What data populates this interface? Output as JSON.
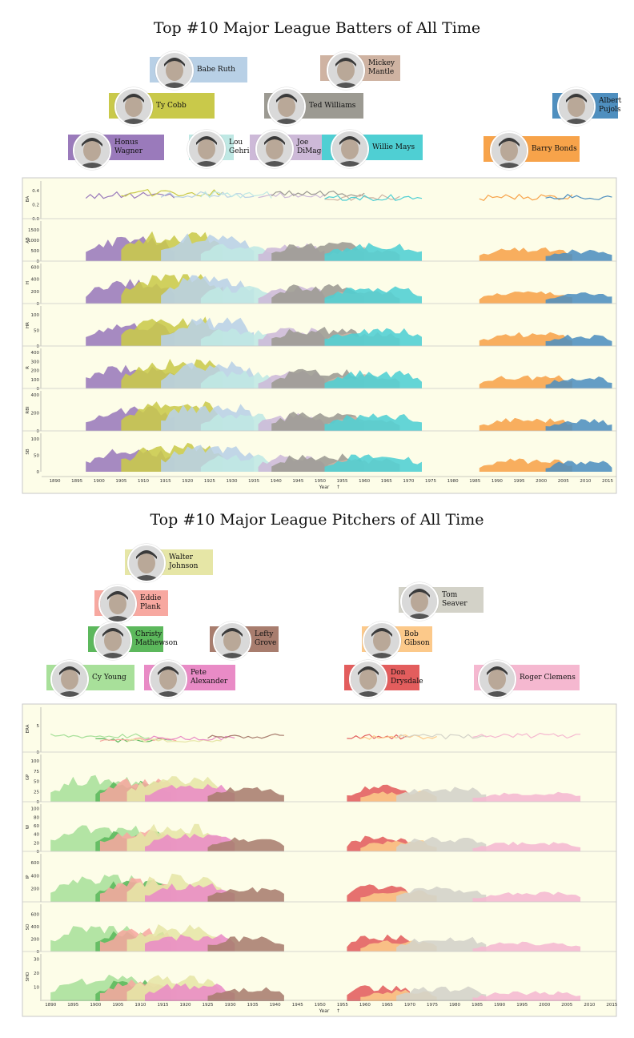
{
  "colors": {
    "plot_bg": "#fdfde8",
    "border": "#c8c8c8"
  },
  "chart_data": [
    {
      "type": "area",
      "title": "Top #10 Major League Batters of All Time",
      "xlabel": "Year",
      "x_range": [
        1887,
        2017
      ],
      "x_ticks": [
        1890,
        1895,
        1900,
        1905,
        1910,
        1915,
        1920,
        1925,
        1930,
        1935,
        1940,
        1945,
        1950,
        1955,
        1960,
        1965,
        1970,
        1975,
        1980,
        1985,
        1990,
        1995,
        2000,
        2005,
        2010,
        2015
      ],
      "players": [
        {
          "name": "Honus Wagner",
          "label": "Honus Wagner",
          "color": "#9a7abb",
          "start": 1897,
          "end": 1917,
          "level": 0.55,
          "line": 0.33
        },
        {
          "name": "Ty Cobb",
          "label": "Ty Cobb",
          "color": "#c9c94a",
          "start": 1905,
          "end": 1928,
          "level": 0.75,
          "line": 0.37
        },
        {
          "name": "Babe Ruth",
          "label": "Babe Ruth",
          "color": "#b8d0e6",
          "start": 1914,
          "end": 1935,
          "level": 0.8,
          "line": 0.34
        },
        {
          "name": "Lou Gehrig",
          "label": "Lou\nGehrig",
          "color": "#bfe8e4",
          "start": 1923,
          "end": 1939,
          "level": 0.55,
          "line": 0.34
        },
        {
          "name": "Joe DiMaggio",
          "label": "Joe\nDiMaggio",
          "color": "#cdb9d8",
          "start": 1936,
          "end": 1951,
          "level": 0.6,
          "line": 0.33
        },
        {
          "name": "Ted Williams",
          "label": "Ted Williams",
          "color": "#9c9a92",
          "start": 1939,
          "end": 1960,
          "level": 0.7,
          "line": 0.35
        },
        {
          "name": "Mickey Mantle",
          "label": "Mickey\nMantle",
          "color": "#cfb3a2",
          "start": 1951,
          "end": 1968,
          "level": 0.55,
          "line": 0.3
        },
        {
          "name": "Willie Mays",
          "label": "Willie Mays",
          "color": "#4fcfd3",
          "start": 1951,
          "end": 1973,
          "level": 0.75,
          "line": 0.3
        },
        {
          "name": "Barry Bonds",
          "label": "Barry Bonds",
          "color": "#f7a34a",
          "start": 1986,
          "end": 2007,
          "level": 0.6,
          "line": 0.3
        },
        {
          "name": "Albert Pujols",
          "label": "Albert\nPujols",
          "color": "#4f8fbf",
          "start": 2001,
          "end": 2016,
          "level": 0.55,
          "line": 0.31
        }
      ],
      "panels": [
        {
          "label": "BA",
          "kind": "line",
          "yticks": [
            {
              "v": 0.0,
              "t": "0.0"
            },
            {
              "v": 0.2,
              "t": "0.2"
            },
            {
              "v": 0.4,
              "t": "0.4"
            }
          ],
          "ymax": 0.5
        },
        {
          "label": "AB",
          "kind": "area",
          "yticks": [
            {
              "v": 0,
              "t": "0"
            },
            {
              "v": 500,
              "t": "500"
            },
            {
              "v": 1000,
              "t": "1000"
            },
            {
              "v": 1500,
              "t": "1500"
            }
          ],
          "ymax": 1800
        },
        {
          "label": "H",
          "kind": "area",
          "yticks": [
            {
              "v": 0,
              "t": "0"
            },
            {
              "v": 200,
              "t": "200"
            },
            {
              "v": 400,
              "t": "400"
            },
            {
              "v": 600,
              "t": "600"
            }
          ],
          "ymax": 620
        },
        {
          "label": "HR",
          "kind": "area",
          "yticks": [
            {
              "v": 0,
              "t": "0"
            },
            {
              "v": 50,
              "t": "50"
            },
            {
              "v": 100,
              "t": "100"
            }
          ],
          "ymax": 120
        },
        {
          "label": "R",
          "kind": "area",
          "yticks": [
            {
              "v": 0,
              "t": "0"
            },
            {
              "v": 100,
              "t": "100"
            },
            {
              "v": 200,
              "t": "200"
            },
            {
              "v": 300,
              "t": "300"
            },
            {
              "v": 400,
              "t": "400"
            }
          ],
          "ymax": 420
        },
        {
          "label": "RBI",
          "kind": "area",
          "yticks": [
            {
              "v": 0,
              "t": "0"
            },
            {
              "v": 200,
              "t": "200"
            },
            {
              "v": 400,
              "t": "400"
            }
          ],
          "ymax": 420
        },
        {
          "label": "SB",
          "kind": "area",
          "yticks": [
            {
              "v": 0,
              "t": "0"
            },
            {
              "v": 50,
              "t": "50"
            },
            {
              "v": 100,
              "t": "100"
            }
          ],
          "ymax": 110
        }
      ]
    },
    {
      "type": "area",
      "title": "Top #10 Major League Pitchers of All Time",
      "xlabel": "Year",
      "x_range": [
        1888,
        2016
      ],
      "x_ticks": [
        1890,
        1895,
        1900,
        1905,
        1910,
        1915,
        1920,
        1925,
        1930,
        1935,
        1940,
        1945,
        1950,
        1955,
        1960,
        1965,
        1970,
        1975,
        1980,
        1985,
        1990,
        1995,
        2000,
        2005,
        2010,
        2015
      ],
      "players": [
        {
          "name": "Cy Young",
          "label": "Cy Young",
          "color": "#a8e09a",
          "start": 1890,
          "end": 1912,
          "level": 0.5,
          "line": 3.0
        },
        {
          "name": "Christy Mathewson",
          "label": "Christy\nMathewson",
          "color": "#5cb85c",
          "start": 1900,
          "end": 1917,
          "level": 0.45,
          "line": 2.2
        },
        {
          "name": "Eddie Plank",
          "label": "Eddie\nPlank",
          "color": "#f7a8a0",
          "start": 1901,
          "end": 1918,
          "level": 0.55,
          "line": 2.4
        },
        {
          "name": "Walter Johnson",
          "label": "Walter\nJohnson",
          "color": "#e6e6a6",
          "start": 1907,
          "end": 1928,
          "level": 0.7,
          "line": 2.2
        },
        {
          "name": "Pete Alexander",
          "label": "Pete\nAlexander",
          "color": "#e98bc6",
          "start": 1911,
          "end": 1931,
          "level": 0.5,
          "line": 2.6
        },
        {
          "name": "Lefty Grove",
          "label": "Lefty\nGrove",
          "color": "#a87d6e",
          "start": 1925,
          "end": 1942,
          "level": 0.45,
          "line": 3.0
        },
        {
          "name": "Don Drysdale",
          "label": "Don\nDrysdale",
          "color": "#e35d5d",
          "start": 1956,
          "end": 1970,
          "level": 0.55,
          "line": 2.9
        },
        {
          "name": "Bob Gibson",
          "label": "Bob\nGibson",
          "color": "#fcc98a",
          "start": 1959,
          "end": 1976,
          "level": 0.4,
          "line": 2.8
        },
        {
          "name": "Tom Seaver",
          "label": "Tom Seaver",
          "color": "#d3d2c8",
          "start": 1967,
          "end": 1987,
          "level": 0.55,
          "line": 2.9
        },
        {
          "name": "Roger Clemens",
          "label": "Roger Clemens",
          "color": "#f5b8d0",
          "start": 1984,
          "end": 2008,
          "level": 0.4,
          "line": 3.1
        }
      ],
      "panels": [
        {
          "label": "ERA",
          "kind": "line",
          "yticks": [
            {
              "v": 0,
              "t": "0"
            },
            {
              "v": 5,
              "t": "5"
            }
          ],
          "ymax": 8
        },
        {
          "label": "GP",
          "kind": "area",
          "yticks": [
            {
              "v": 0,
              "t": "0"
            },
            {
              "v": 25,
              "t": "25"
            },
            {
              "v": 50,
              "t": "50"
            },
            {
              "v": 75,
              "t": "75"
            },
            {
              "v": 100,
              "t": "100"
            }
          ],
          "ymax": 110
        },
        {
          "label": "W",
          "kind": "area",
          "yticks": [
            {
              "v": 0,
              "t": "0"
            },
            {
              "v": 20,
              "t": "20"
            },
            {
              "v": 40,
              "t": "40"
            },
            {
              "v": 60,
              "t": "60"
            },
            {
              "v": 80,
              "t": "80"
            },
            {
              "v": 100,
              "t": "100"
            }
          ],
          "ymax": 105
        },
        {
          "label": "IP",
          "kind": "area",
          "yticks": [
            {
              "v": 200,
              "t": "200"
            },
            {
              "v": 400,
              "t": "400"
            },
            {
              "v": 600,
              "t": "600"
            }
          ],
          "ymax": 700
        },
        {
          "label": "SO",
          "kind": "area",
          "yticks": [
            {
              "v": 0,
              "t": "0"
            },
            {
              "v": 200,
              "t": "200"
            },
            {
              "v": 400,
              "t": "400"
            },
            {
              "v": 600,
              "t": "600"
            }
          ],
          "ymax": 720
        },
        {
          "label": "SHO",
          "kind": "area",
          "yticks": [
            {
              "v": 10,
              "t": "10"
            },
            {
              "v": 20,
              "t": "20"
            },
            {
              "v": 30,
              "t": "30"
            }
          ],
          "ymax": 32
        }
      ]
    }
  ]
}
